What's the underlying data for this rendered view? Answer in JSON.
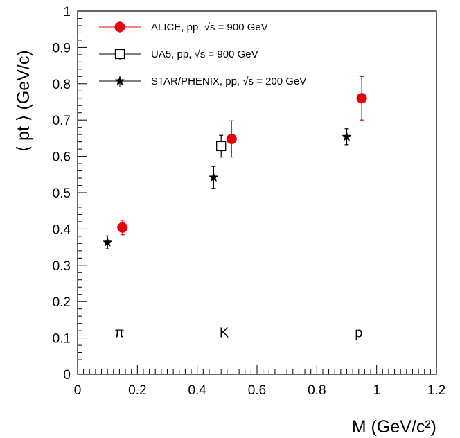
{
  "chart_data": {
    "type": "scatter",
    "xlabel": "M (GeV/c²)",
    "ylabel": "⟨ pt ⟩ (GeV/c)",
    "xlim": [
      0,
      1.2
    ],
    "ylim": [
      0,
      1.0
    ],
    "x_ticks": [
      "0",
      "0.2",
      "0.4",
      "0.6",
      "0.8",
      "1",
      "1.2"
    ],
    "y_ticks": [
      "0",
      "0.1",
      "0.2",
      "0.3",
      "0.4",
      "0.5",
      "0.6",
      "0.7",
      "0.8",
      "0.9",
      "1"
    ],
    "grid": false,
    "legend_position": "top-left",
    "series": [
      {
        "name": "ALICE, pp, √s = 900 GeV",
        "marker": "filled-circle",
        "color": "#e8000b",
        "points": [
          {
            "x": 0.15,
            "y": 0.404,
            "err": 0.02
          },
          {
            "x": 0.515,
            "y": 0.648,
            "err": 0.05
          },
          {
            "x": 0.95,
            "y": 0.76,
            "err": 0.06
          }
        ]
      },
      {
        "name": "UA5, p̄p, √s = 900 GeV",
        "marker": "open-square",
        "color": "#000000",
        "points": [
          {
            "x": 0.48,
            "y": 0.628,
            "err": 0.03
          }
        ]
      },
      {
        "name": "STAR/PHENIX, pp, √s = 200 GeV",
        "marker": "star",
        "color": "#000000",
        "points": [
          {
            "x": 0.1,
            "y": 0.363,
            "err": 0.018
          },
          {
            "x": 0.455,
            "y": 0.542,
            "err": 0.03
          },
          {
            "x": 0.9,
            "y": 0.654,
            "err": 0.022
          }
        ]
      }
    ],
    "annotations": [
      {
        "text": "π",
        "x": 0.14,
        "y": 0.115
      },
      {
        "text": "K",
        "x": 0.49,
        "y": 0.115
      },
      {
        "text": "p",
        "x": 0.94,
        "y": 0.115
      }
    ]
  }
}
